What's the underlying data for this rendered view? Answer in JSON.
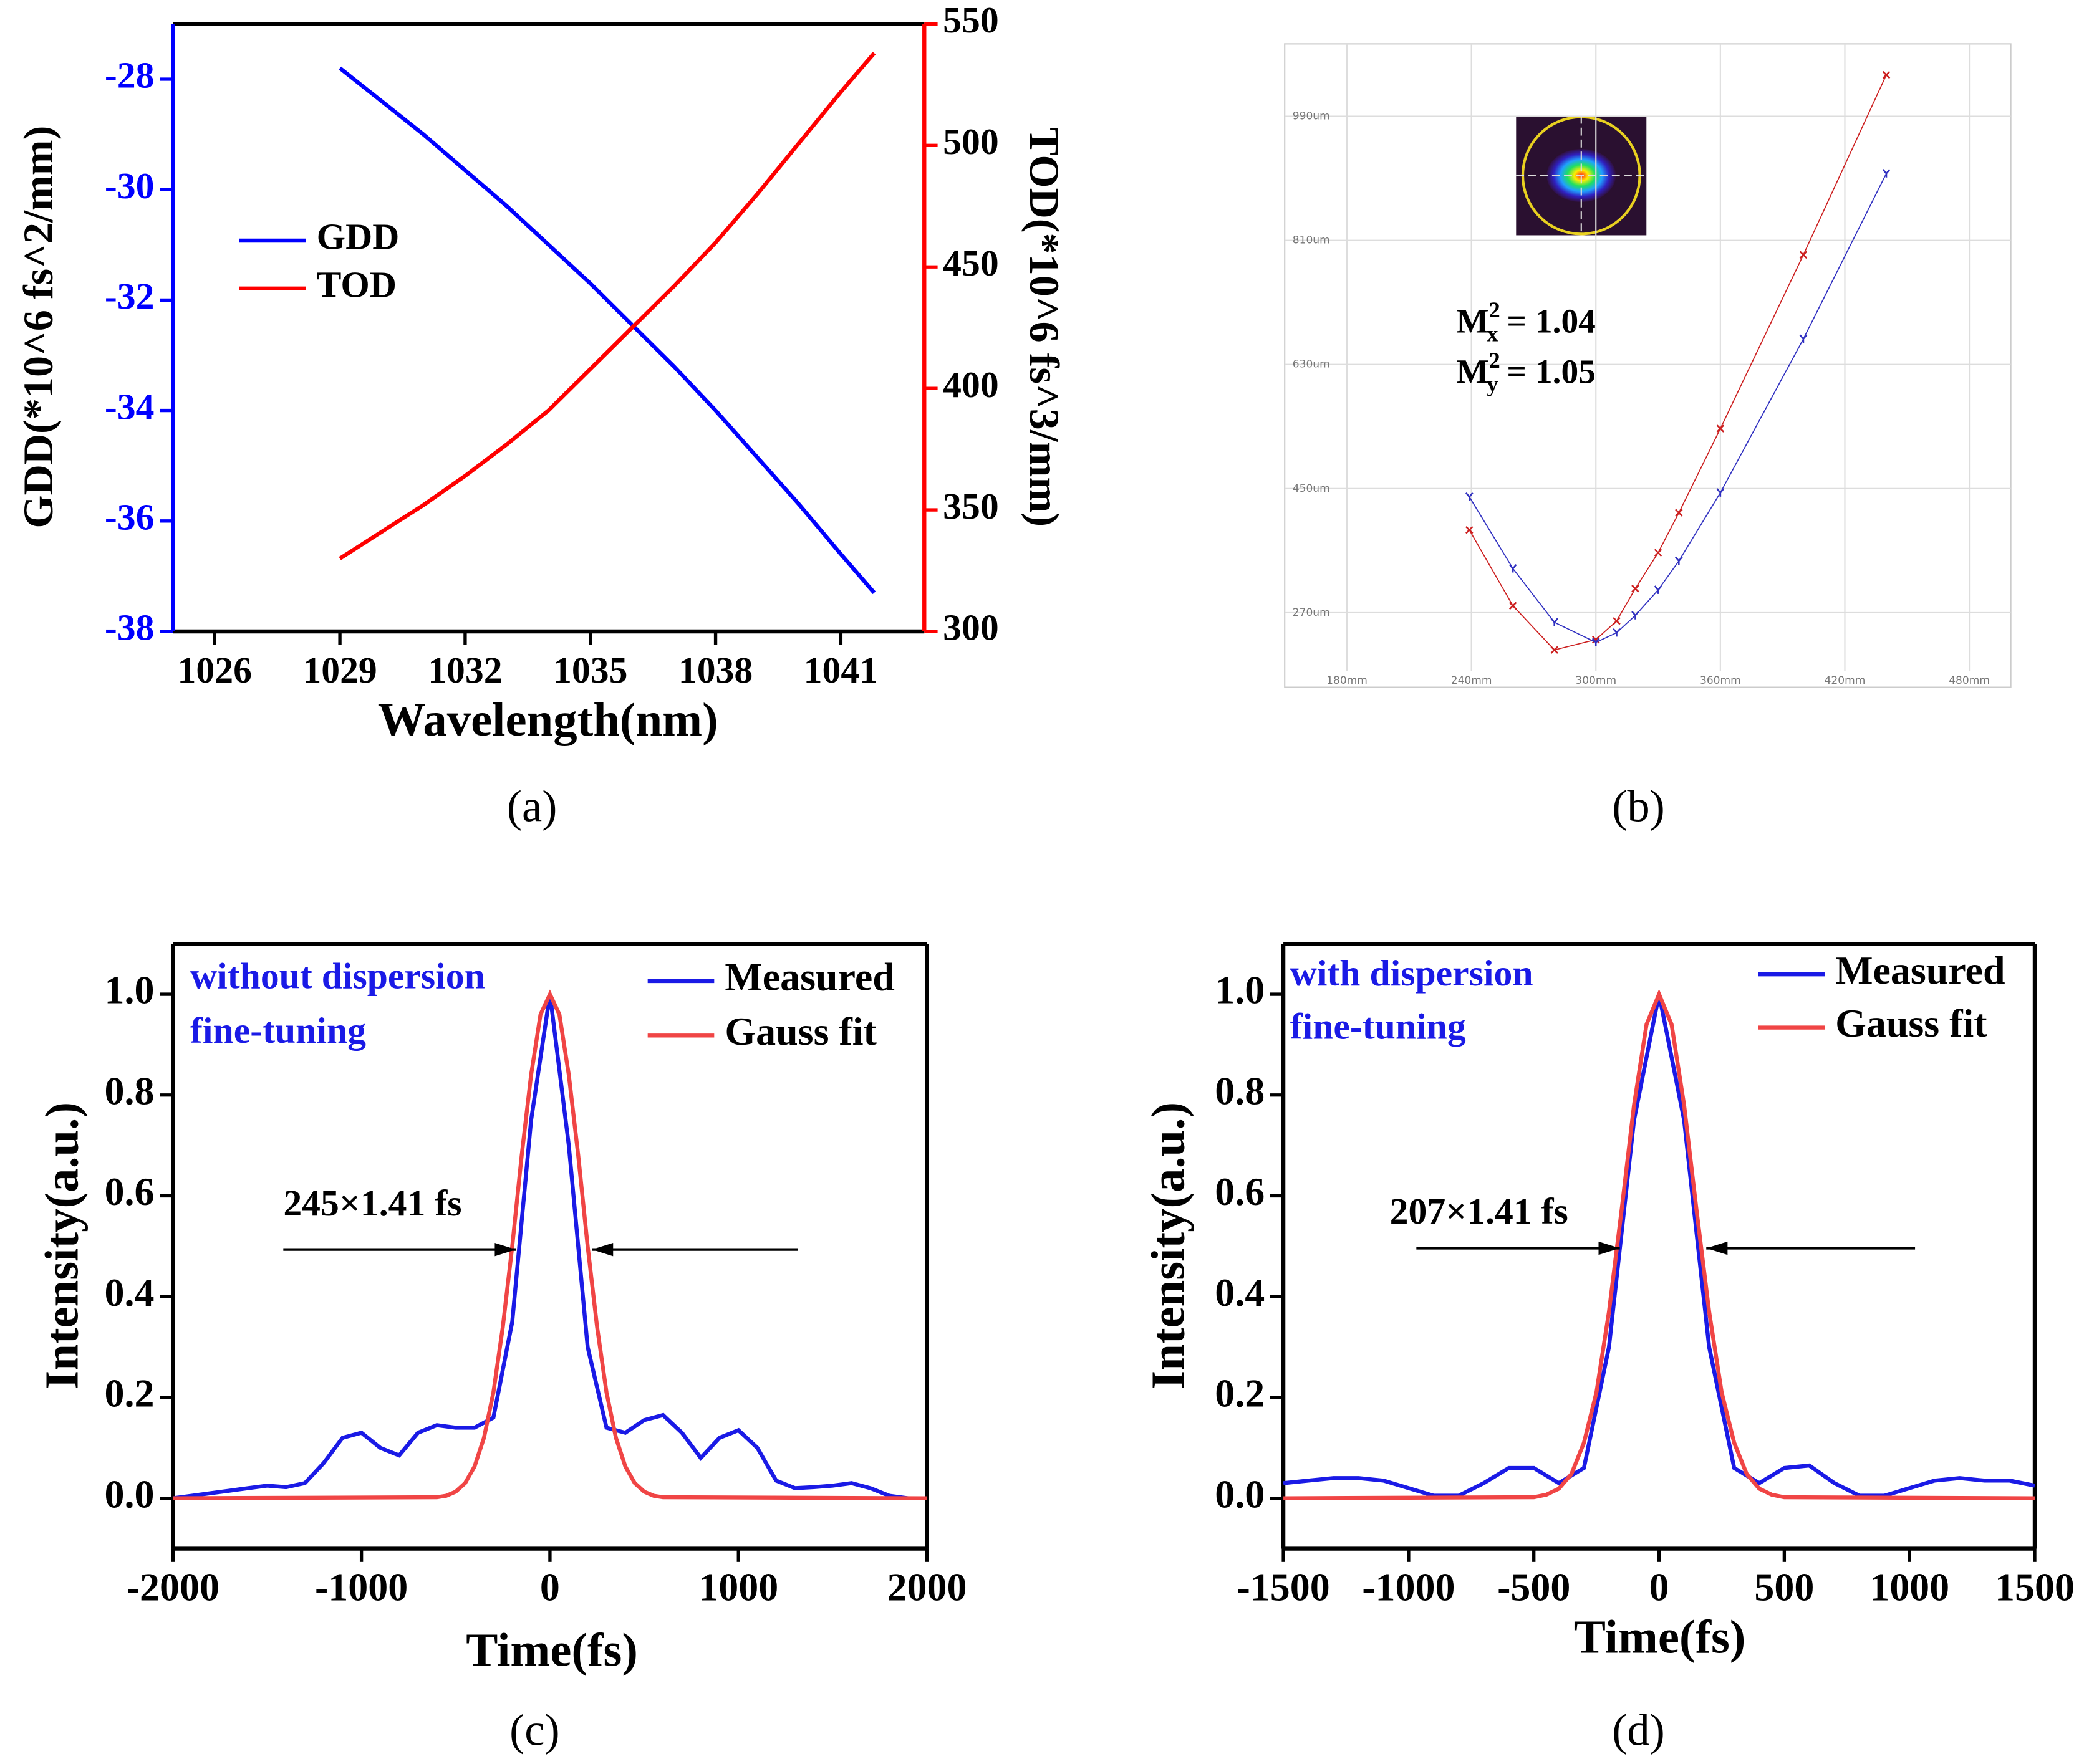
{
  "chart_data": [
    {
      "type": "line",
      "caption": "(a)",
      "x_label": "Wavelength(nm)",
      "y_label": "GDD(*10^6 fs^2/mm)",
      "y2_label": "TOD(*10^6 fs^3/mm)",
      "y_axis_color": "#0000ff",
      "y2_axis_color": "#ff0000",
      "x": [
        1029,
        1030,
        1031,
        1032,
        1033,
        1034,
        1035,
        1036,
        1037,
        1038,
        1039,
        1040,
        1041,
        1041.8
      ],
      "series": [
        {
          "name": "GDD",
          "color": "#0000ff",
          "values": [
            -27.8,
            -28.4,
            -29.0,
            -29.65,
            -30.3,
            -31.0,
            -31.7,
            -32.45,
            -33.2,
            -34.0,
            -34.85,
            -35.7,
            -36.6,
            -37.3
          ]
        },
        {
          "name": "TOD",
          "color": "#ff0000",
          "axis": "y2",
          "values": [
            330,
            341,
            352,
            364,
            377,
            391,
            408,
            425,
            442,
            460,
            480,
            501,
            522,
            538
          ]
        }
      ],
      "xlim": [
        1025,
        1043
      ],
      "xticks": [
        1026,
        1029,
        1032,
        1035,
        1038,
        1041
      ],
      "ylim": [
        -38,
        -27
      ],
      "yticks": [
        -38,
        -36,
        -34,
        -32,
        -30,
        -28
      ],
      "y2lim": [
        300,
        550
      ],
      "y2ticks": [
        300,
        350,
        400,
        450,
        500,
        550
      ]
    },
    {
      "type": "scatter",
      "caption": "(b)",
      "grid": true,
      "annotations": [
        {
          "base": "M",
          "sup": "2",
          "sub": "x",
          "text": " = 1.04"
        },
        {
          "base": "M",
          "sup": "2",
          "sub": "y",
          "text": " = 1.05"
        }
      ],
      "series": [
        {
          "color": "#cc2020",
          "marker": "x",
          "x": [
            239,
            260,
            280,
            300,
            310,
            319,
            330,
            340,
            360,
            400,
            440
          ],
          "values": [
            390,
            280,
            216,
            231,
            258,
            305,
            357,
            415,
            537,
            789,
            1050
          ]
        },
        {
          "color": "#3030c0",
          "marker": "y",
          "x": [
            239,
            260,
            280,
            300,
            310,
            319,
            330,
            340,
            360,
            400,
            440
          ],
          "values": [
            438,
            334,
            256,
            227,
            241,
            266,
            303,
            345,
            444,
            667,
            907
          ]
        }
      ],
      "xlim": [
        150,
        500
      ],
      "xticks": [
        {
          "value": 180,
          "label": "180mm"
        },
        {
          "value": 240,
          "label": "240mm"
        },
        {
          "value": 300,
          "label": "300mm"
        },
        {
          "value": 360,
          "label": "360mm"
        },
        {
          "value": 420,
          "label": "420mm"
        },
        {
          "value": 480,
          "label": "480mm"
        }
      ],
      "ylim": [
        185,
        1095
      ],
      "yticks": [
        {
          "value": 270,
          "label": "270um"
        },
        {
          "value": 450,
          "label": "450um"
        },
        {
          "value": 630,
          "label": "630um"
        },
        {
          "value": 810,
          "label": "810um"
        },
        {
          "value": 990,
          "label": "990um"
        }
      ]
    },
    {
      "type": "line",
      "caption": "(c)",
      "x_label": "Time(fs)",
      "y_label": "Intensity(a.u.)",
      "note": [
        "without dispersion",
        "fine-tuning"
      ],
      "annotation": "245×1.41 fs",
      "x": [
        -2000,
        -1900,
        -1800,
        -1700,
        -1600,
        -1500,
        -1400,
        -1300,
        -1200,
        -1100,
        -1000,
        -900,
        -800,
        -700,
        -600,
        -500,
        -400,
        -300,
        -200,
        -100,
        0,
        100,
        200,
        300,
        400,
        500,
        600,
        700,
        800,
        900,
        1000,
        1100,
        1200,
        1300,
        1400,
        1500,
        1600,
        1700,
        1800,
        1900,
        2000
      ],
      "series": [
        {
          "name": "Measured",
          "color": "#1a1ae6",
          "values": [
            0.0,
            0.005,
            0.01,
            0.015,
            0.02,
            0.025,
            0.022,
            0.03,
            0.07,
            0.12,
            0.13,
            0.1,
            0.085,
            0.13,
            0.145,
            0.14,
            0.14,
            0.16,
            0.35,
            0.75,
            1.0,
            0.7,
            0.3,
            0.14,
            0.13,
            0.155,
            0.165,
            0.13,
            0.08,
            0.12,
            0.135,
            0.1,
            0.035,
            0.02,
            0.022,
            0.025,
            0.03,
            0.02,
            0.005,
            0.0,
            0.0
          ]
        },
        {
          "name": "Gauss fit",
          "color": "#f04545",
          "x": [
            -2000,
            -600,
            -550,
            -500,
            -450,
            -400,
            -350,
            -300,
            -250,
            -200,
            -150,
            -100,
            -50,
            0,
            50,
            100,
            150,
            200,
            250,
            300,
            350,
            400,
            450,
            500,
            550,
            600,
            2000
          ],
          "values": [
            0,
            0.002,
            0.005,
            0.013,
            0.03,
            0.063,
            0.12,
            0.21,
            0.34,
            0.5,
            0.68,
            0.84,
            0.96,
            1,
            0.96,
            0.84,
            0.68,
            0.5,
            0.34,
            0.21,
            0.12,
            0.063,
            0.03,
            0.013,
            0.005,
            0.002,
            0
          ]
        }
      ],
      "xlim": [
        -2000,
        2000
      ],
      "xticks": [
        -2000,
        -1000,
        0,
        1000,
        2000
      ],
      "ylim": [
        -0.1,
        1.1
      ],
      "yticks": [
        {
          "value": 0,
          "label": "0.0"
        },
        0.2,
        0.4,
        0.6,
        0.8,
        {
          "value": 1,
          "label": "1.0"
        }
      ]
    },
    {
      "type": "line",
      "caption": "(d)",
      "x_label": "Time(fs)",
      "y_label": "Intensity(a.u.)",
      "note": [
        "with dispersion",
        "fine-tuning"
      ],
      "annotation": "207×1.41 fs",
      "x": [
        -1500,
        -1400,
        -1300,
        -1200,
        -1100,
        -1000,
        -900,
        -800,
        -700,
        -600,
        -500,
        -400,
        -300,
        -200,
        -100,
        0,
        100,
        200,
        300,
        400,
        500,
        600,
        700,
        800,
        900,
        1000,
        1100,
        1200,
        1300,
        1400,
        1500
      ],
      "series": [
        {
          "name": "Measured",
          "color": "#1a1ae6",
          "values": [
            0.03,
            0.035,
            0.04,
            0.04,
            0.035,
            0.02,
            0.005,
            0.005,
            0.03,
            0.06,
            0.06,
            0.03,
            0.06,
            0.3,
            0.75,
            1.0,
            0.75,
            0.3,
            0.06,
            0.03,
            0.06,
            0.065,
            0.03,
            0.005,
            0.005,
            0.02,
            0.035,
            0.04,
            0.035,
            0.035,
            0.025
          ]
        },
        {
          "name": "Gauss fit",
          "color": "#f04545",
          "x": [
            -1500,
            -500,
            -450,
            -400,
            -350,
            -300,
            -250,
            -200,
            -150,
            -100,
            -50,
            0,
            50,
            100,
            150,
            200,
            250,
            300,
            350,
            400,
            450,
            500,
            1500
          ],
          "values": [
            0,
            0.002,
            0.007,
            0.019,
            0.048,
            0.11,
            0.21,
            0.37,
            0.57,
            0.78,
            0.94,
            1,
            0.94,
            0.78,
            0.57,
            0.37,
            0.21,
            0.11,
            0.048,
            0.019,
            0.007,
            0.002,
            0
          ]
        }
      ],
      "xlim": [
        -1500,
        1500
      ],
      "xticks": [
        -1500,
        -1000,
        -500,
        0,
        500,
        1000,
        1500
      ],
      "ylim": [
        -0.1,
        1.1
      ],
      "yticks": [
        {
          "value": 0,
          "label": "0.0"
        },
        0.2,
        0.4,
        0.6,
        0.8,
        {
          "value": 1,
          "label": "1.0"
        }
      ]
    }
  ]
}
